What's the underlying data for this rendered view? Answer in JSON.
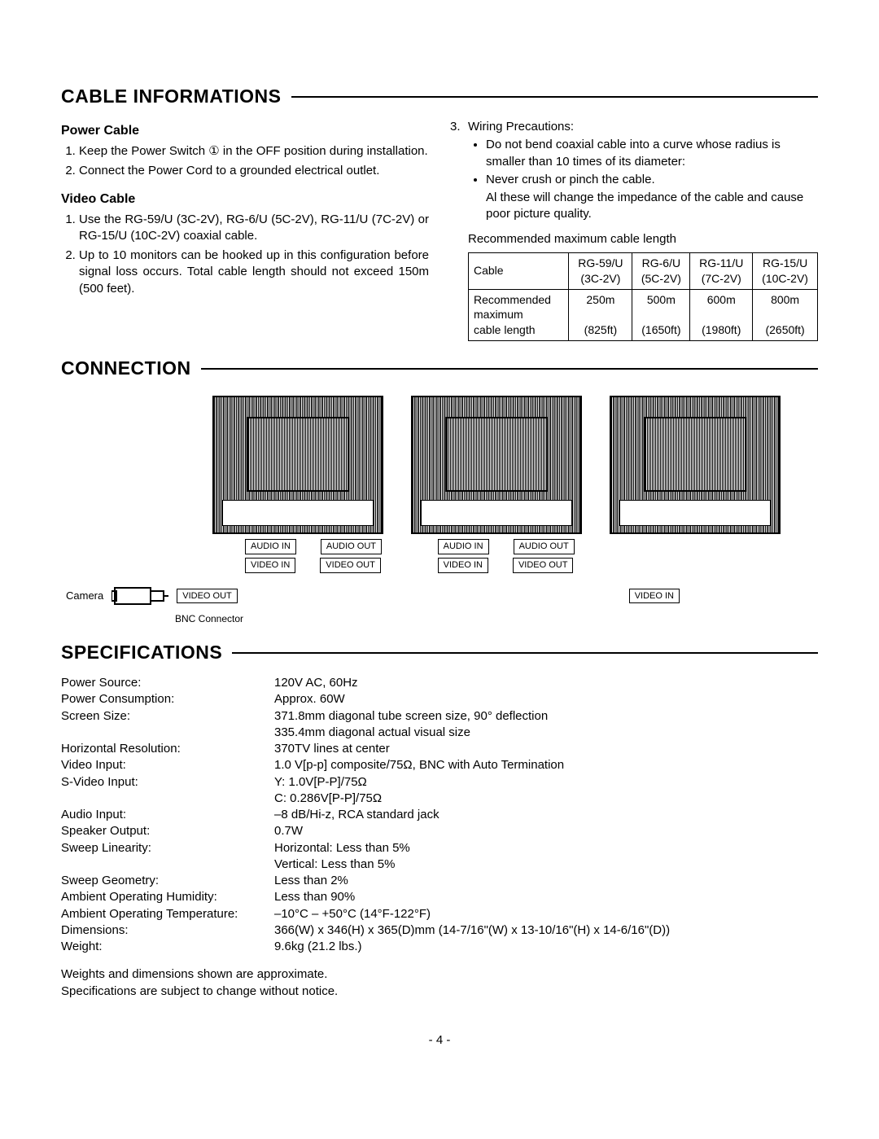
{
  "page_number": "- 4 -",
  "sections": {
    "cable_info": {
      "title": "CABLE INFORMATIONS",
      "power_cable": {
        "heading": "Power Cable",
        "items": [
          "Keep the Power Switch ① in the OFF position during installation.",
          "Connect the Power Cord to a grounded electrical outlet."
        ]
      },
      "video_cable": {
        "heading": "Video Cable",
        "items": [
          "Use the RG-59/U (3C-2V), RG-6/U (5C-2V), RG-11/U (7C-2V) or RG-15/U (10C-2V) coaxial cable.",
          "Up to 10 monitors can be hooked up in this configuration before signal loss occurs. Total cable length should not exceed 150m (500 feet)."
        ]
      },
      "wiring_precautions": {
        "label": "Wiring Precautions:",
        "number": "3.",
        "bullets": [
          "Do not bend coaxial cable into a curve whose radius is smaller than 10 times of its diameter:",
          "Never crush or pinch the cable."
        ],
        "tail": "Al these will change the impedance of the cable and cause poor picture quality."
      },
      "table_caption": "Recommended maximum cable length",
      "table": {
        "header": [
          {
            "l1": "Cable",
            "l2": ""
          },
          {
            "l1": "RG-59/U",
            "l2": "(3C-2V)"
          },
          {
            "l1": "RG-6/U",
            "l2": "(5C-2V)"
          },
          {
            "l1": "RG-11/U",
            "l2": "(7C-2V)"
          },
          {
            "l1": "RG-15/U",
            "l2": "(10C-2V)"
          }
        ],
        "row_label_1": "Recommended",
        "row_label_2": "maximum",
        "row_label_3": "cable length",
        "vals_top": [
          "250m",
          "500m",
          "600m",
          "800m"
        ],
        "vals_bot": [
          "(825ft)",
          "(1650ft)",
          "(1980ft)",
          "(2650ft)"
        ]
      }
    },
    "connection": {
      "title": "CONNECTION",
      "labels": {
        "audio_in": "AUDIO IN",
        "audio_out": "AUDIO OUT",
        "video_in": "VIDEO IN",
        "video_out": "VIDEO OUT",
        "camera": "Camera",
        "bnc": "BNC Connector"
      }
    },
    "specs": {
      "title": "SPECIFICATIONS",
      "rows": [
        {
          "k": "Power Source:",
          "v": "120V AC, 60Hz"
        },
        {
          "k": "Power Consumption:",
          "v": "Approx. 60W"
        },
        {
          "k": "Screen Size:",
          "v": "371.8mm diagonal tube screen size, 90° deflection"
        },
        {
          "k": "",
          "v": "335.4mm diagonal actual visual size"
        },
        {
          "k": "Horizontal Resolution:",
          "v": "370TV lines at center"
        },
        {
          "k": "Video Input:",
          "v": "1.0 V[p-p] composite/75Ω, BNC with Auto Termination"
        },
        {
          "k": "S-Video Input:",
          "v": "Y: 1.0V[P-P]/75Ω"
        },
        {
          "k": "",
          "v": "C: 0.286V[P-P]/75Ω"
        },
        {
          "k": "Audio Input:",
          "v": "–8 dB/Hi-z, RCA standard jack"
        },
        {
          "k": "Speaker Output:",
          "v": "0.7W"
        },
        {
          "k": "Sweep Linearity:",
          "v": "Horizontal: Less than 5%"
        },
        {
          "k": "",
          "v": "Vertical: Less than 5%"
        },
        {
          "k": "Sweep Geometry:",
          "v": "Less than 2%"
        },
        {
          "k": "Ambient Operating Humidity:",
          "v": "Less than 90%"
        },
        {
          "k": "Ambient Operating Temperature:",
          "v": "–10°C – +50°C (14°F-122°F)"
        },
        {
          "k": "Dimensions:",
          "v": "366(W) x 346(H) x 365(D)mm (14-7/16\"(W) x 13-10/16\"(H) x 14-6/16\"(D))"
        },
        {
          "k": "Weight:",
          "v": "9.6kg (21.2 lbs.)"
        }
      ],
      "foot1": "Weights and dimensions shown are approximate.",
      "foot2": "Specifications are subject to change without notice."
    }
  }
}
